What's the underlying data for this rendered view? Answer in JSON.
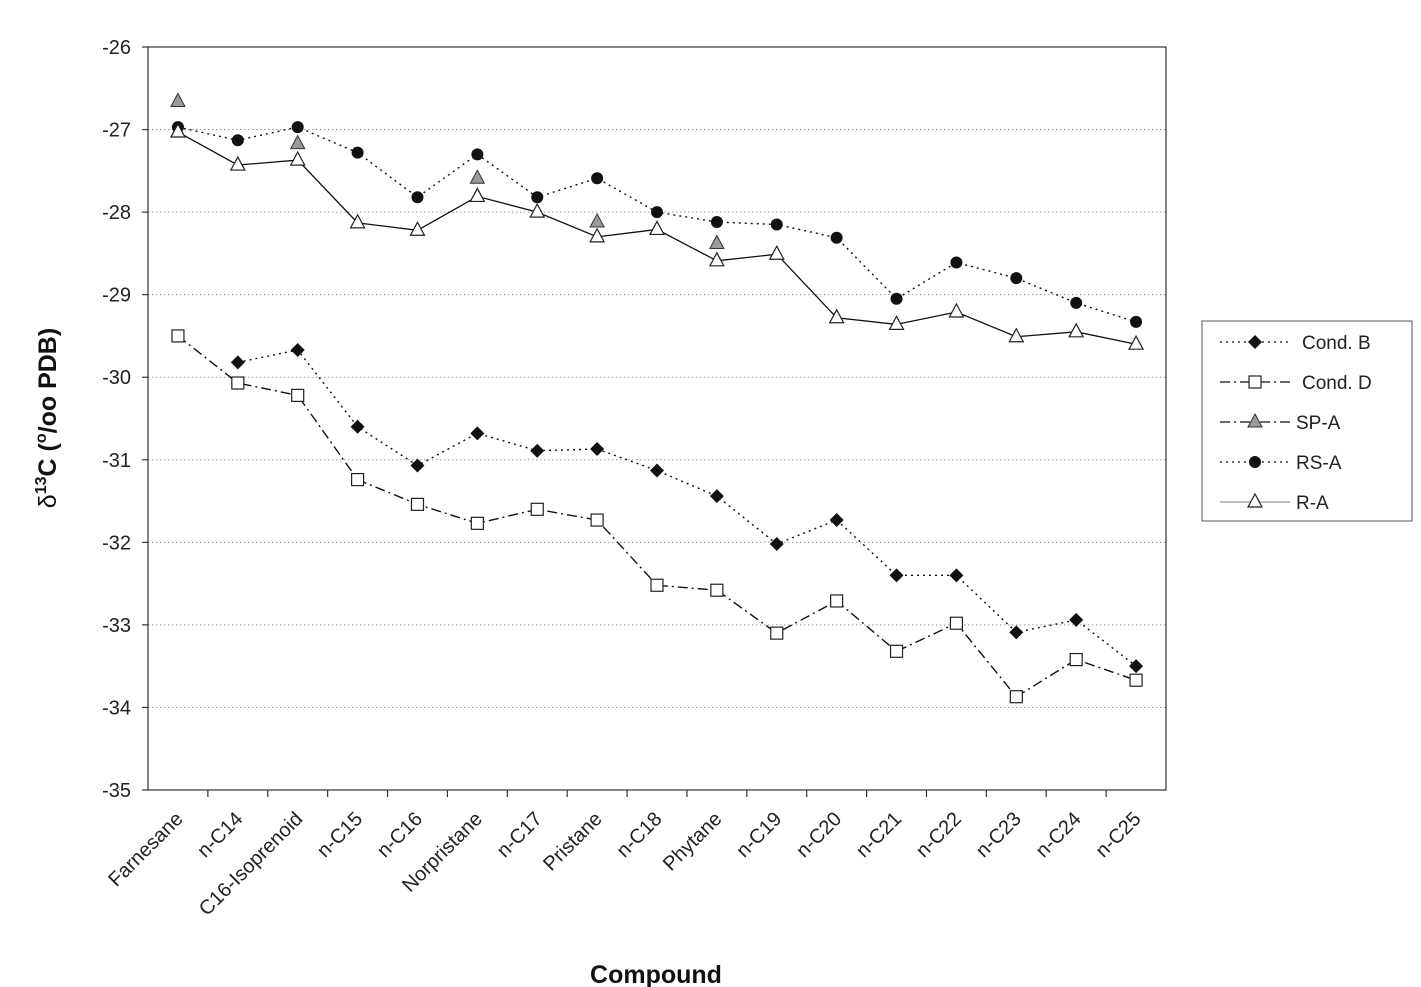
{
  "chart_data": {
    "type": "line",
    "xlabel": "Compound",
    "ylabel": "δ13C (o/oo PDB)",
    "ylabel_parts": {
      "delta": "δ",
      "sup": "13",
      "c": "C (",
      "o": "o",
      "rest": "/oo PDB)"
    },
    "ylim": [
      -35,
      -26
    ],
    "yticks": [
      "-26",
      "-27",
      "-28",
      "-29",
      "-30",
      "-31",
      "-32",
      "-33",
      "-34",
      "-35"
    ],
    "grid": "horizontal dotted",
    "legend_position": "right",
    "categories": [
      "Farnesane",
      "n-C14",
      "C16-Isoprenoid",
      "n-C15",
      "n-C16",
      "Norpristane",
      "n-C17",
      "Pristane",
      "n-C18",
      "Phytane",
      "n-C19",
      "n-C20",
      "n-C21",
      "n-C22",
      "n-C23",
      "n-C24",
      "n-C25"
    ],
    "series": [
      {
        "name": "Cond. B",
        "marker": "diamond",
        "line": "dotted",
        "color": "#111111",
        "values": [
          null,
          -29.82,
          -29.67,
          -30.6,
          -31.07,
          -30.68,
          -30.89,
          -30.87,
          -31.13,
          -31.44,
          -32.02,
          -31.73,
          -32.4,
          -32.4,
          -33.09,
          -32.94,
          -33.5
        ]
      },
      {
        "name": "Cond. D",
        "marker": "square-open",
        "line": "dashdot",
        "color": "#111111",
        "values": [
          -29.5,
          -30.07,
          -30.22,
          -31.24,
          -31.54,
          -31.77,
          -31.6,
          -31.73,
          -32.52,
          -32.58,
          -33.1,
          -32.71,
          -33.32,
          -32.98,
          -33.87,
          -33.42,
          -33.67
        ]
      },
      {
        "name": "SP-A",
        "marker": "triangle-gray",
        "line": "dashdot",
        "color": "#9a9a9a",
        "values": [
          -26.66,
          null,
          -27.17,
          null,
          null,
          -27.59,
          null,
          -28.12,
          null,
          -28.38,
          null,
          null,
          null,
          null,
          null,
          null,
          null
        ]
      },
      {
        "name": "RS-A",
        "marker": "circle",
        "line": "dotted",
        "color": "#111111",
        "values": [
          -26.97,
          -27.13,
          -26.97,
          -27.28,
          -27.82,
          -27.3,
          -27.82,
          -27.59,
          -28.0,
          -28.12,
          -28.15,
          -28.31,
          -29.05,
          -28.61,
          -28.8,
          -29.1,
          -29.33
        ]
      },
      {
        "name": "R-A",
        "marker": "triangle-open",
        "line": "solid",
        "color": "#111111",
        "values": [
          -27.03,
          -27.43,
          -27.37,
          -28.13,
          -28.22,
          -27.81,
          -28.0,
          -28.3,
          -28.21,
          -28.59,
          -28.51,
          -29.28,
          -29.36,
          -29.21,
          -29.51,
          -29.45,
          -29.6
        ]
      }
    ]
  }
}
